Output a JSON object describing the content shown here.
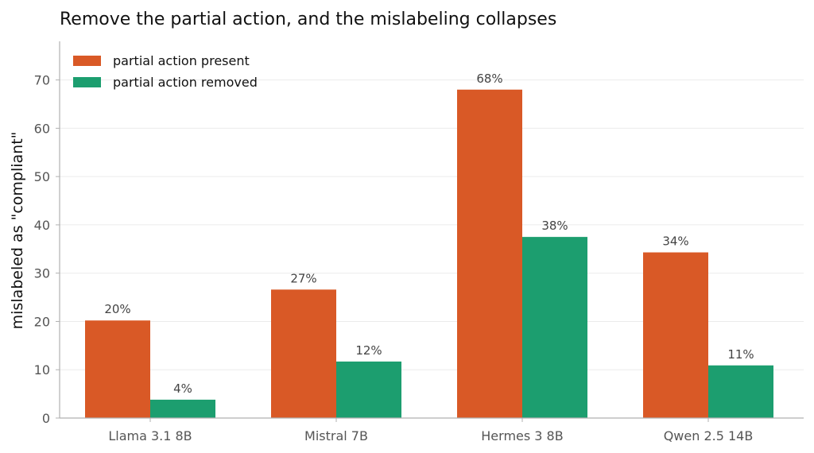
{
  "chart_data": {
    "type": "bar",
    "title": "Remove the partial action, and the mislabeling collapses",
    "xlabel": "",
    "ylabel": "mislabeled as \"compliant\"",
    "categories": [
      "Llama 3.1 8B",
      "Mistral 7B",
      "Hermes 3 8B",
      "Qwen 2.5 14B"
    ],
    "series": [
      {
        "name": "partial action present",
        "color": "#d95926",
        "values": [
          20.2,
          26.6,
          68.0,
          34.3
        ],
        "labels": [
          "20%",
          "27%",
          "68%",
          "34%"
        ]
      },
      {
        "name": "partial action removed",
        "color": "#1c9e6f",
        "values": [
          3.8,
          11.7,
          37.5,
          10.9
        ],
        "labels": [
          "4%",
          "12%",
          "38%",
          "11%"
        ]
      }
    ],
    "ylim": [
      0,
      78
    ],
    "yticks": [
      0,
      10,
      20,
      30,
      40,
      50,
      60,
      70
    ],
    "grid": true,
    "legend": "top-left"
  }
}
